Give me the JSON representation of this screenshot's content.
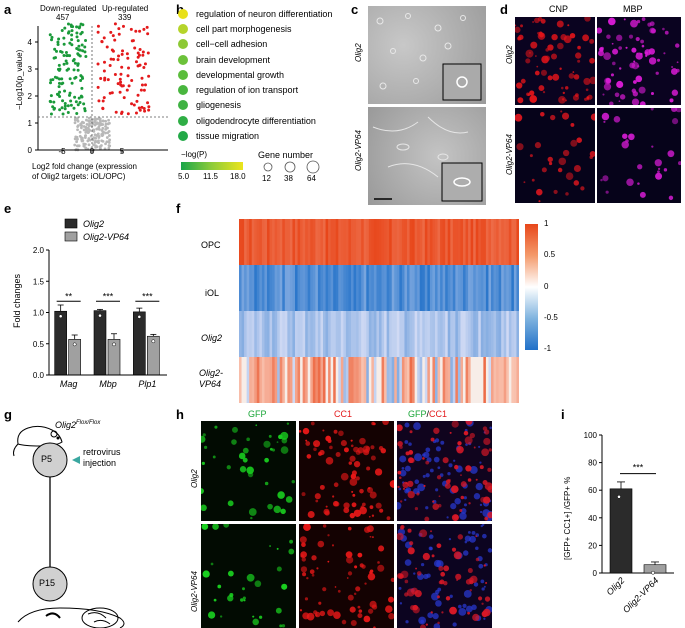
{
  "panels": {
    "a": "a",
    "b": "b",
    "c": "c",
    "d": "d",
    "e": "e",
    "f": "f",
    "g": "g",
    "h": "h",
    "i": "i"
  },
  "volcano": {
    "down_label": "Down-regulated",
    "down_count": "457",
    "up_label": "Up-regulated",
    "up_count": "339",
    "ylabel": "−Log10(p_value)",
    "xlabel_line1": "Log2 fold change (expression",
    "xlabel_line2": "of Olig2 targets: iOL/OPC)",
    "xticks": [
      "-5",
      "0",
      "5"
    ],
    "yticks": [
      "0",
      "1",
      "2",
      "3",
      "4"
    ],
    "colors": {
      "down": "#1a9a3a",
      "up": "#e41a1c",
      "ns": "#b8b8b8"
    }
  },
  "go_terms": {
    "terms": [
      "regulation of neuron differentiation",
      "cell part morphogenesis",
      "cell−cell adhesion",
      "brain development",
      "developmental growth",
      "regulation of ion transport",
      "gliogenesis",
      "oligodendrocyte differentiation",
      "tissue migration"
    ],
    "colors": [
      "#e8e01a",
      "#b5d42b",
      "#8dc935",
      "#6cc23a",
      "#5bbd3c",
      "#49b63f",
      "#3fb243",
      "#2fae45",
      "#22a947"
    ],
    "sizes": [
      12,
      12,
      12,
      12,
      12,
      12,
      12,
      12,
      12
    ],
    "legend_color_title": "−log(P)",
    "legend_color_ticks": [
      "5.0",
      "11.5",
      "18.0"
    ],
    "legend_size_title": "Gene number",
    "legend_size_ticks": [
      "12",
      "38",
      "64"
    ]
  },
  "panel_c": {
    "row1": "Olig2",
    "row2": "Olig2-VP64"
  },
  "panel_d": {
    "col1": "CNP",
    "col2": "MBP",
    "row1": "Olig2",
    "row2": "Olig2-VP64"
  },
  "bar_e": {
    "ylabel": "Fold changes",
    "legend": [
      "Olig2",
      "Olig2-VP64"
    ],
    "categories": [
      "Mag",
      "Mbp",
      "Plp1"
    ],
    "significance": [
      "**",
      "***",
      "***"
    ],
    "yticks": [
      "0.0",
      "0.5",
      "1.0",
      "1.5",
      "2.0"
    ]
  },
  "heatmap_f": {
    "rows": [
      "OPC",
      "iOL",
      "Olig2",
      "Olig2-VP64"
    ],
    "row_italic": [
      false,
      false,
      true,
      true
    ],
    "colorbar_ticks": [
      "1",
      "0.5",
      "0",
      "-0.5",
      "-1"
    ]
  },
  "panel_g": {
    "mouse_label": "Olig2",
    "mouse_sup": "Flox/Flox",
    "timepoint1": "P5",
    "timepoint2": "P15",
    "injection_line1": "retrovirus",
    "injection_line2": "injection"
  },
  "panel_h": {
    "col1": "GFP",
    "col2": "CC1",
    "col3a": "GFP",
    "col3sep": "/",
    "col3b": "CC1",
    "row1": "Olig2",
    "row2": "Olig2-VP64"
  },
  "bar_i": {
    "ylabel": "[GFP+ CC1+] /GFP+ %",
    "yticks": [
      "0",
      "20",
      "40",
      "60",
      "80",
      "100"
    ],
    "categories": [
      "Olig2",
      "Olig2-VP64"
    ],
    "significance": "***"
  },
  "chart_data": [
    {
      "type": "bar",
      "title": "",
      "xlabel": "",
      "ylabel": "Fold changes",
      "categories": [
        "Mag",
        "Mbp",
        "Plp1"
      ],
      "ylim": [
        0,
        2.0
      ],
      "series": [
        {
          "name": "Olig2",
          "values": [
            1.02,
            1.03,
            1.01
          ],
          "errors": [
            0.1,
            0.02,
            0.06
          ],
          "color": "#2b2b2b"
        },
        {
          "name": "Olig2-VP64",
          "values": [
            0.57,
            0.57,
            0.62
          ],
          "errors": [
            0.07,
            0.09,
            0.03
          ],
          "color": "#a0a0a0"
        }
      ],
      "significance": [
        "**",
        "***",
        "***"
      ]
    },
    {
      "type": "bar",
      "title": "",
      "xlabel": "",
      "ylabel": "[GFP+ CC1+] /GFP+ %",
      "categories": [
        "Olig2",
        "Olig2-VP64"
      ],
      "values": [
        61,
        6
      ],
      "errors": [
        5,
        2
      ],
      "ylim": [
        0,
        100
      ],
      "significance": "***"
    },
    {
      "type": "scatter",
      "title": "",
      "xlabel": "Log2 fold change (expression of Olig2 targets: iOL/OPC)",
      "ylabel": "−Log10(p_value)",
      "xlim": [
        -9,
        9
      ],
      "ylim": [
        0,
        5
      ],
      "series": [
        {
          "name": "Down-regulated",
          "count": 457
        },
        {
          "name": "Up-regulated",
          "count": 339
        }
      ]
    }
  ]
}
